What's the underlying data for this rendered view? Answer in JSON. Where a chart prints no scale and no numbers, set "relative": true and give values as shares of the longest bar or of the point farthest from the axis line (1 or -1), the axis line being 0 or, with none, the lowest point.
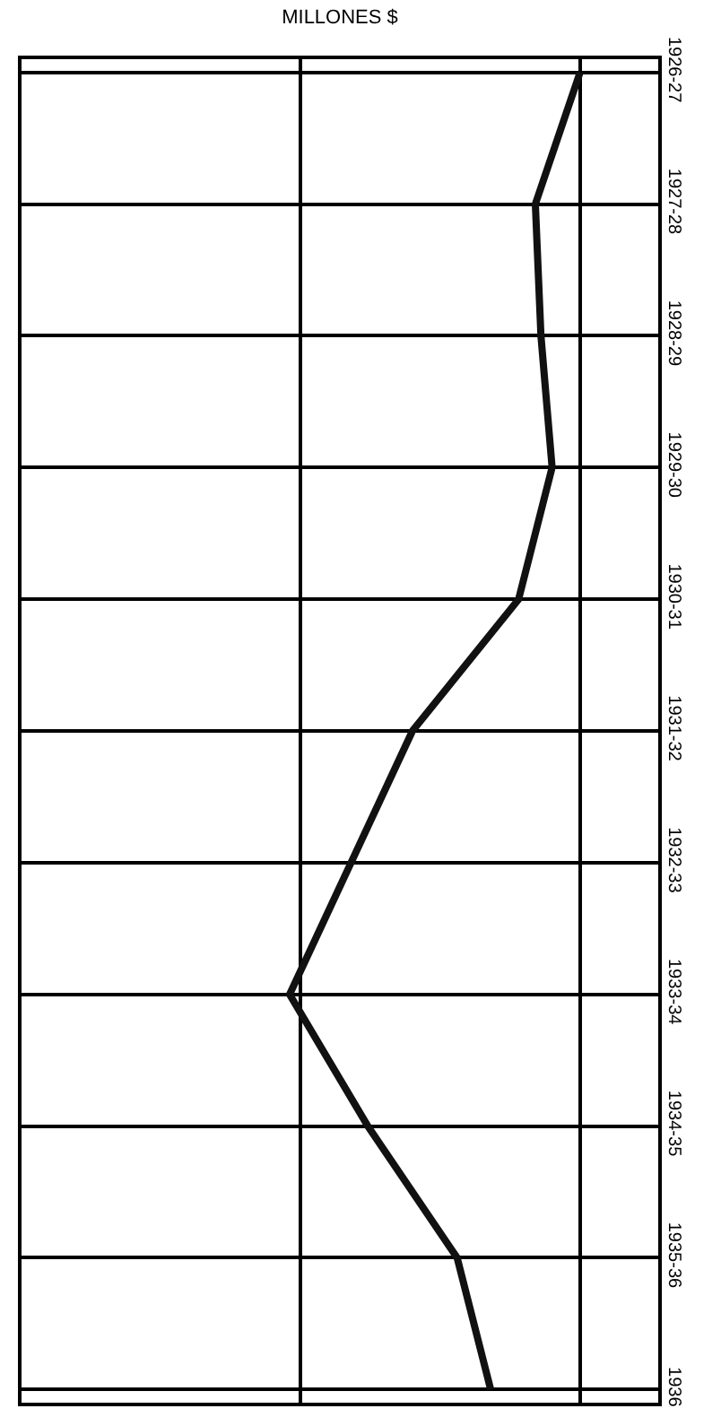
{
  "chart_data": {
    "type": "line",
    "orientation": "horizontal",
    "relative": true,
    "xlabel": "MILLONES $",
    "categories": [
      "1926-27",
      "1927-28",
      "1928-29",
      "1929-30",
      "1930-31",
      "1931-32",
      "1932-33",
      "1933-34",
      "1934-35",
      "1935-36",
      "1936"
    ],
    "series": [
      {
        "color": "#111111",
        "values": [
          1.0,
          0.92,
          0.93,
          0.95,
          0.89,
          0.7,
          0.59,
          0.48,
          0.62,
          0.78,
          0.84
        ]
      }
    ],
    "grid": true,
    "marker": "none",
    "line_style": "solid"
  }
}
